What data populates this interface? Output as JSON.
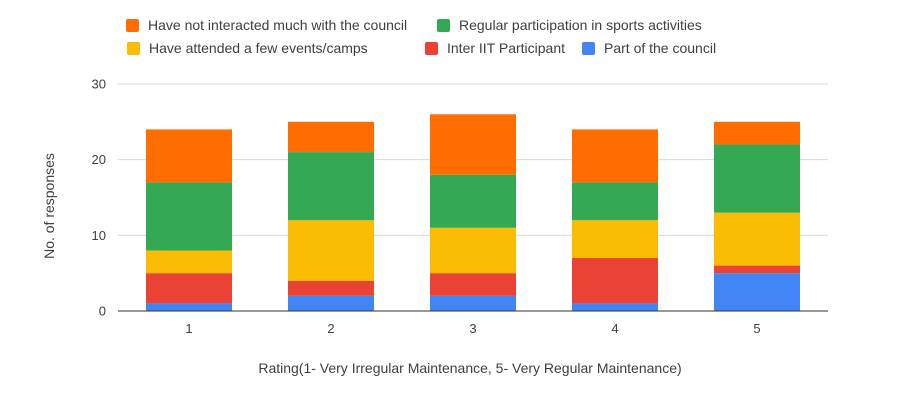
{
  "chart_data": {
    "type": "bar",
    "stacked": true,
    "xlabel": "Rating(1- Very Irregular Maintenance, 5- Very Regular Maintenance)",
    "ylabel": "No. of responses",
    "ylim": [
      0,
      30
    ],
    "yticks": [
      0,
      10,
      20,
      30
    ],
    "grid": true,
    "legend_position": "top",
    "categories": [
      "1",
      "2",
      "3",
      "4",
      "5"
    ],
    "series": [
      {
        "name": "Part of the council",
        "color": "#4285f4",
        "values": [
          1,
          2,
          2,
          1,
          5
        ]
      },
      {
        "name": "Inter IIT Participant",
        "color": "#ea4335",
        "values": [
          4,
          2,
          3,
          6,
          1
        ]
      },
      {
        "name": "Have attended a few events/camps",
        "color": "#fbbc04",
        "values": [
          3,
          8,
          6,
          5,
          7
        ]
      },
      {
        "name": "Regular participation in sports activities",
        "color": "#34a853",
        "values": [
          9,
          9,
          7,
          5,
          9
        ]
      },
      {
        "name": "Have not interacted much with the council",
        "color": "#ff6d01",
        "values": [
          7,
          4,
          8,
          7,
          3
        ]
      }
    ],
    "legend_order": [
      4,
      3,
      2,
      1,
      0
    ]
  }
}
